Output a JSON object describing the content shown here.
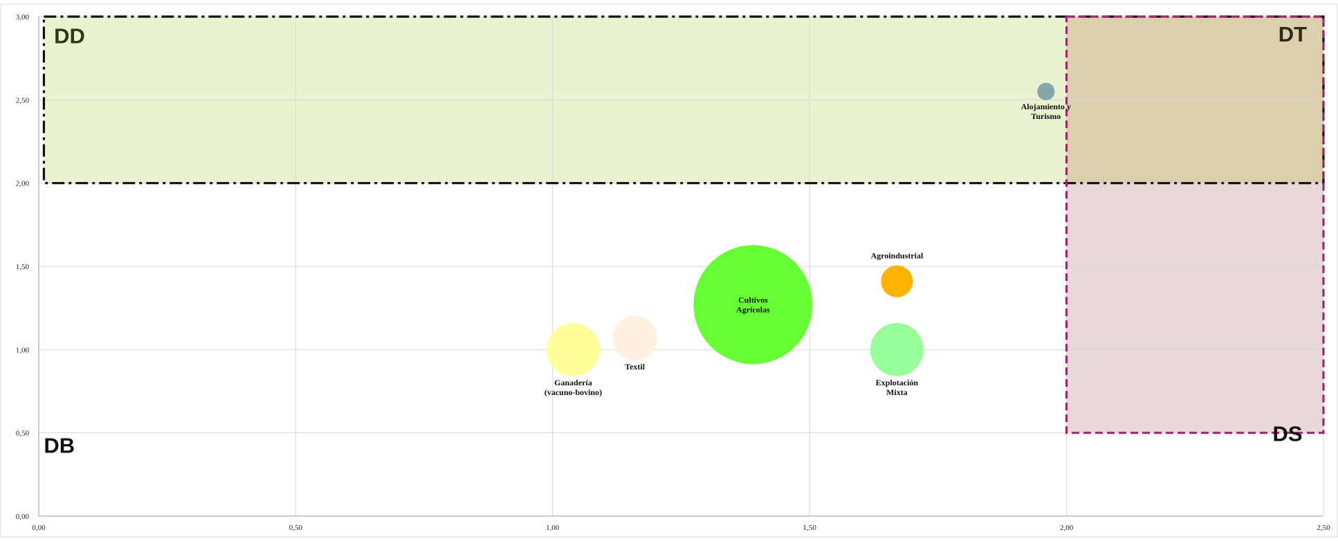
{
  "chart_data": {
    "type": "bubble",
    "title": "",
    "xlabel": "",
    "ylabel": "",
    "xlim": [
      0,
      2.5
    ],
    "ylim": [
      0,
      3
    ],
    "x_ticks": [
      "0,00",
      "0,50",
      "1,00",
      "1,50",
      "2,00",
      "2,50"
    ],
    "y_ticks": [
      "0,00",
      "0,50",
      "1,00",
      "1,50",
      "2,00",
      "2,50",
      "3,00"
    ],
    "grid": true,
    "zones": [
      {
        "name": "DD",
        "x": [
          0.01,
          2.5
        ],
        "y": [
          2.0,
          3.0
        ],
        "fill": "#eaf3cf",
        "border": "dash-dot",
        "border_color": "#111111"
      },
      {
        "name": "DS",
        "x": [
          2.0,
          2.5
        ],
        "y": [
          0.5,
          3.0
        ],
        "fill": "#ead7d9",
        "border": "dashed",
        "border_color": "#9c2a6a"
      },
      {
        "name": "DT",
        "x": [
          2.0,
          2.5
        ],
        "y": [
          2.0,
          3.0
        ],
        "fill": "#dccfae"
      },
      {
        "name": "DB",
        "x": [
          0,
          2.0
        ],
        "y": [
          0,
          2.0
        ]
      }
    ],
    "series": [
      {
        "label_lines": [
          "Alojamiento y",
          "Turismo"
        ],
        "x": 1.96,
        "y": 2.55,
        "size": 0.3,
        "color": "#86a7a8",
        "label_pos": "below"
      },
      {
        "label_lines": [
          "Agroindustrial"
        ],
        "x": 1.67,
        "y": 1.41,
        "size": 1.0,
        "color": "#ffb300",
        "label_pos": "above"
      },
      {
        "label_lines": [
          "Cultivos",
          "Agrícolas"
        ],
        "x": 1.39,
        "y": 1.27,
        "size": 14.0,
        "color": "#66ff33",
        "label_pos": "center"
      },
      {
        "label_lines": [
          "Explotación",
          "Mixta"
        ],
        "x": 1.67,
        "y": 1.0,
        "size": 2.8,
        "color": "#99ff99",
        "label_pos": "below"
      },
      {
        "label_lines": [
          "Ganadería",
          "(vacuno-bovino)"
        ],
        "x": 1.04,
        "y": 1.0,
        "size": 2.8,
        "color": "#ffff99",
        "label_pos": "below"
      },
      {
        "label_lines": [
          "Textil"
        ],
        "x": 1.16,
        "y": 1.07,
        "size": 2.0,
        "color": "#fff2e0",
        "label_pos": "below"
      }
    ]
  }
}
